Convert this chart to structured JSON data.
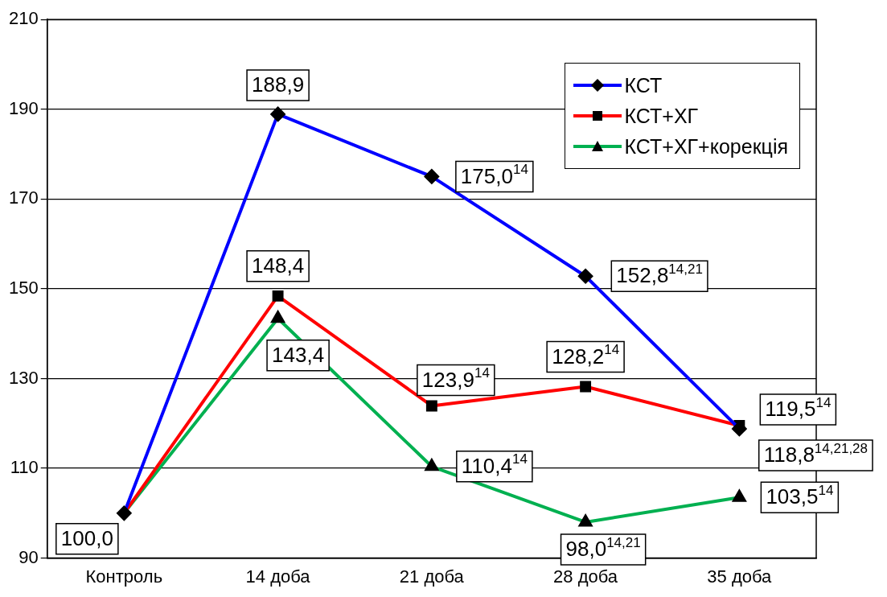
{
  "chart_data": {
    "type": "line",
    "categories": [
      "Контроль",
      "14 доба",
      "21 доба",
      "28 доба",
      "35 доба"
    ],
    "ylim": [
      90,
      210
    ],
    "yticks": [
      90,
      110,
      130,
      150,
      170,
      190,
      210
    ],
    "grid": "y",
    "legend": "top right",
    "line_style": "solid",
    "series": [
      {
        "name": "КСТ",
        "color": "#0000ff",
        "marker": "diamond",
        "values": [
          100.0,
          188.9,
          175.0,
          152.8,
          118.8
        ],
        "value_labels": [
          "100,0",
          "188,9",
          "175,0$^{14}$",
          "152,8$^{14,21}$",
          "118,8$^{14,21,28}$"
        ]
      },
      {
        "name": "КСТ+ХГ",
        "color": "#ff0000",
        "marker": "square",
        "values": [
          100.0,
          148.4,
          123.9,
          128.2,
          119.5
        ],
        "value_labels": [
          null,
          "148,4",
          "123,9$^{14}$",
          "128,2$^{14}$",
          "119,5$^{14}$"
        ]
      },
      {
        "name": "КСТ+ХГ+корекція",
        "color": "#00b050",
        "marker": "triangle",
        "values": [
          100.0,
          143.4,
          110.4,
          98.0,
          103.5
        ],
        "value_labels": [
          null,
          "143,4",
          "110,4$^{14}$",
          "98,0$^{14,21}$",
          "103,5$^{14}$"
        ]
      }
    ]
  }
}
